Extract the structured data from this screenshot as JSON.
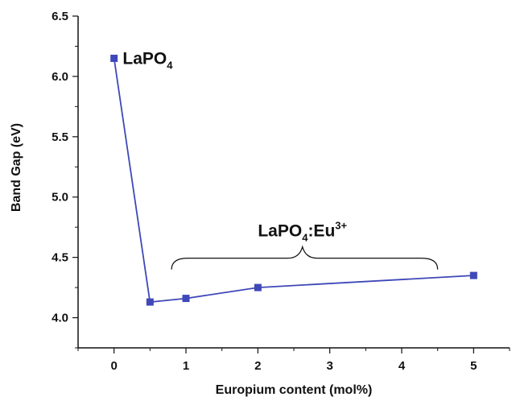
{
  "chart_data": {
    "type": "line",
    "xlabel": "Europium content (mol%)",
    "ylabel": "Band Gap (eV)",
    "xlim": [
      -0.5,
      5.5
    ],
    "ylim": [
      3.75,
      6.5
    ],
    "xticks": [
      0,
      1,
      2,
      3,
      4,
      5
    ],
    "xtick_labels": [
      "0",
      "1",
      "2",
      "3",
      "4",
      "5"
    ],
    "yticks": [
      4.0,
      4.5,
      5.0,
      5.5,
      6.0,
      6.5
    ],
    "ytick_labels": [
      "4.0",
      "4.5",
      "5.0",
      "5.5",
      "6.0",
      "6.5"
    ],
    "grid": false,
    "legend": "none",
    "series": [
      {
        "color": "#3f48b8",
        "marker": "square",
        "x": [
          0,
          0.5,
          1,
          2,
          5
        ],
        "y": [
          6.15,
          4.13,
          4.16,
          4.25,
          4.35
        ]
      }
    ],
    "annotations": [
      {
        "text": "LaPO",
        "sub": "4",
        "sup": "",
        "x": 0.12,
        "y": 6.15
      },
      {
        "text": "LaPO",
        "sub": "4",
        "mid": ":Eu",
        "sup": "3+",
        "x": 2.62,
        "y": 4.72
      }
    ],
    "brace": {
      "x_start": 0.8,
      "x_end": 4.5,
      "y": 4.4
    }
  }
}
